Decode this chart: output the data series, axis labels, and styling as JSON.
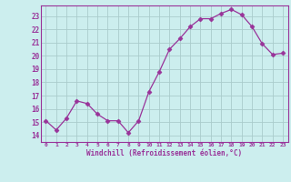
{
  "x": [
    0,
    1,
    2,
    3,
    4,
    5,
    6,
    7,
    8,
    9,
    10,
    11,
    12,
    13,
    14,
    15,
    16,
    17,
    18,
    19,
    20,
    21,
    22,
    23
  ],
  "y": [
    15.1,
    14.4,
    15.3,
    16.6,
    16.4,
    15.6,
    15.1,
    15.1,
    14.2,
    15.1,
    17.3,
    18.8,
    20.5,
    21.3,
    22.2,
    22.8,
    22.8,
    23.2,
    23.5,
    23.1,
    22.2,
    20.9,
    20.1,
    20.2
  ],
  "line_color": "#993399",
  "marker": "D",
  "marker_size": 2.5,
  "bg_color": "#cceeee",
  "grid_color": "#aacccc",
  "xlabel": "Windchill (Refroidissement éolien,°C)",
  "ylabel_ticks": [
    14,
    15,
    16,
    17,
    18,
    19,
    20,
    21,
    22,
    23
  ],
  "xlim": [
    -0.5,
    23.5
  ],
  "ylim": [
    13.5,
    23.8
  ],
  "tick_color": "#993399",
  "label_color": "#993399",
  "spine_color": "#993399"
}
